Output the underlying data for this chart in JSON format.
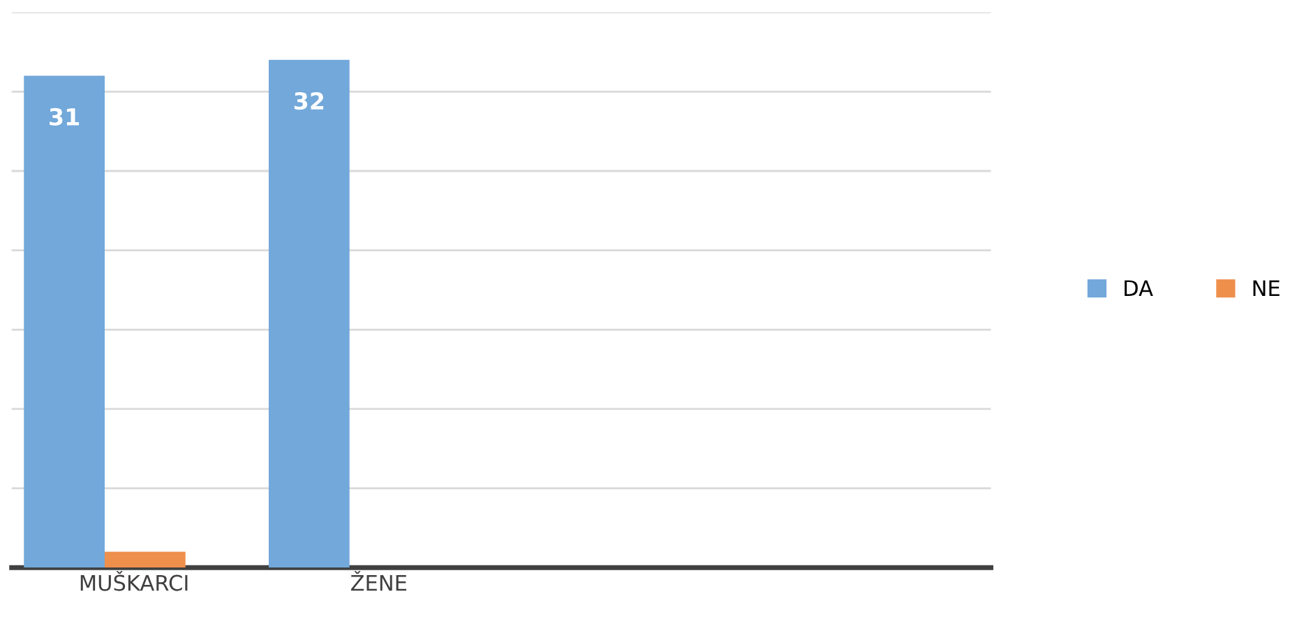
{
  "chart_data": {
    "type": "bar",
    "categories": [
      "MUŠKARCI",
      "ŽENE",
      null,
      null
    ],
    "series": [
      {
        "name": "DA",
        "color": "#72a8da",
        "values": [
          31,
          32,
          null,
          null
        ],
        "value_labels": [
          "31",
          "32",
          null,
          null
        ]
      },
      {
        "name": "NE",
        "color": "#ef8f4c",
        "values": [
          1,
          0,
          null,
          null
        ]
      }
    ],
    "ylim": [
      0,
      35
    ],
    "yticks": [
      {
        "value": 0,
        "label": null
      },
      {
        "value": 5,
        "label": null
      },
      {
        "value": 10,
        "label": null
      },
      {
        "value": 15,
        "label": null
      },
      {
        "value": 20,
        "label": null
      },
      {
        "value": 25,
        "label": null
      },
      {
        "value": 30,
        "label": null
      },
      {
        "value": 35,
        "label": null
      }
    ],
    "tick_labels": "x",
    "grid": "y",
    "legend": "right"
  }
}
